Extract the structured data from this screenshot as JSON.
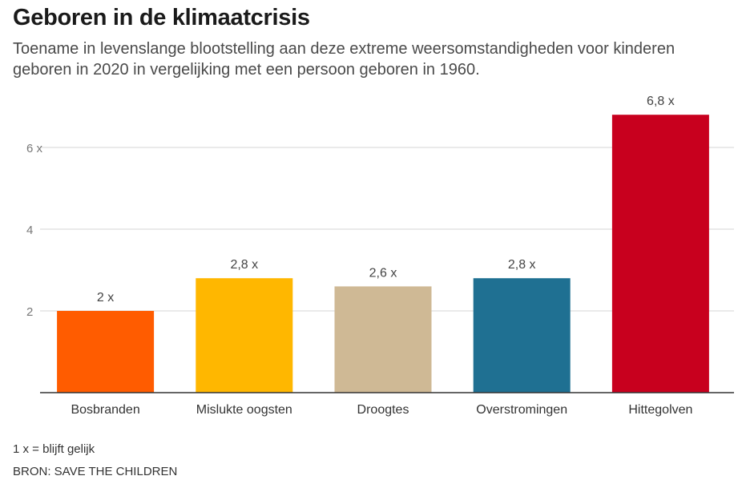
{
  "header": {
    "title": "Geboren in de klimaatcrisis",
    "subtitle": "Toename in levenslange blootstelling aan deze extreme weersomstandigheden voor kinderen geboren in 2020 in vergelijking met een persoon geboren in 1960."
  },
  "footer": {
    "note": "1 x = blijft gelijk",
    "source": "BRON: SAVE THE CHILDREN"
  },
  "chart_data": {
    "type": "bar",
    "title": "Geboren in de klimaatcrisis",
    "subtitle": "Toename in levenslange blootstelling aan deze extreme weersomstandigheden voor kinderen geboren in 2020 in vergelijking met een persoon geboren in 1960.",
    "categories": [
      "Bosbranden",
      "Mislukte oogsten",
      "Droogtes",
      "Overstromingen",
      "Hittegolven"
    ],
    "values": [
      2,
      2.8,
      2.6,
      2.8,
      6.8
    ],
    "value_labels": [
      "2 x",
      "2,8 x",
      "2,6 x",
      "2,8 x",
      "6,8 x"
    ],
    "colors": [
      "#ff5c00",
      "#ffb700",
      "#cfb995",
      "#1f7092",
      "#c8001e"
    ],
    "ylim": [
      0,
      7
    ],
    "yticks": [
      2,
      4,
      6
    ],
    "ytick_labels": [
      "2",
      "4",
      "6 x"
    ],
    "xlabel": "",
    "ylabel": "",
    "grid": true,
    "legend": "none"
  }
}
